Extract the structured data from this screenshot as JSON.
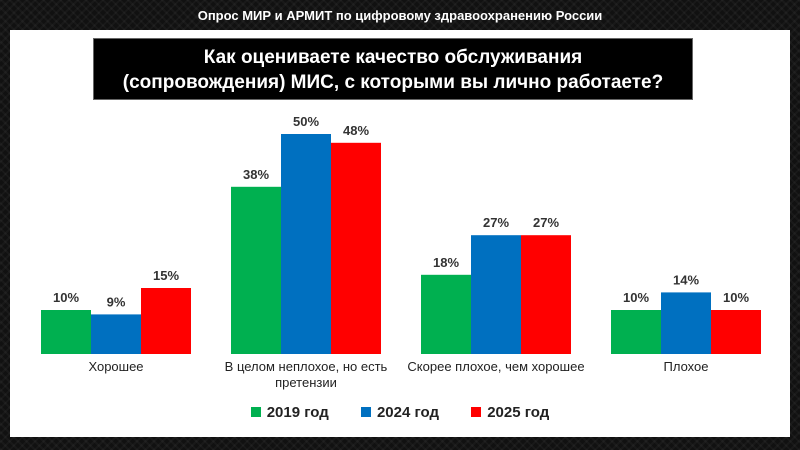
{
  "header": {
    "text": "Опрос МИР и АРМИТ по цифровому здравоохранению России"
  },
  "chart_data": {
    "type": "bar",
    "title_lines": [
      "Как оцениваете качество обслуживания",
      "(сопровождения) МИС, с которыми вы лично работаете?"
    ],
    "categories": [
      "Хорошее",
      "В целом неплохое, но есть претензии",
      "Скорее плохое, чем хорошее",
      "Плохое"
    ],
    "series": [
      {
        "name": "2019 год",
        "color": "#00b050",
        "values": [
          10,
          38,
          18,
          10
        ],
        "labels": [
          "10%",
          "38%",
          "18%",
          "10%"
        ]
      },
      {
        "name": "2024 год",
        "color": "#0070c0",
        "values": [
          9,
          50,
          27,
          14
        ],
        "labels": [
          "9%",
          "50%",
          "27%",
          "14%"
        ]
      },
      {
        "name": "2025 год",
        "color": "#ff0000",
        "values": [
          15,
          48,
          27,
          10
        ],
        "labels": [
          "15%",
          "48%",
          "27%",
          "10%"
        ]
      }
    ],
    "ylim": [
      0,
      50
    ],
    "grid": false,
    "legend_position": "bottom"
  }
}
